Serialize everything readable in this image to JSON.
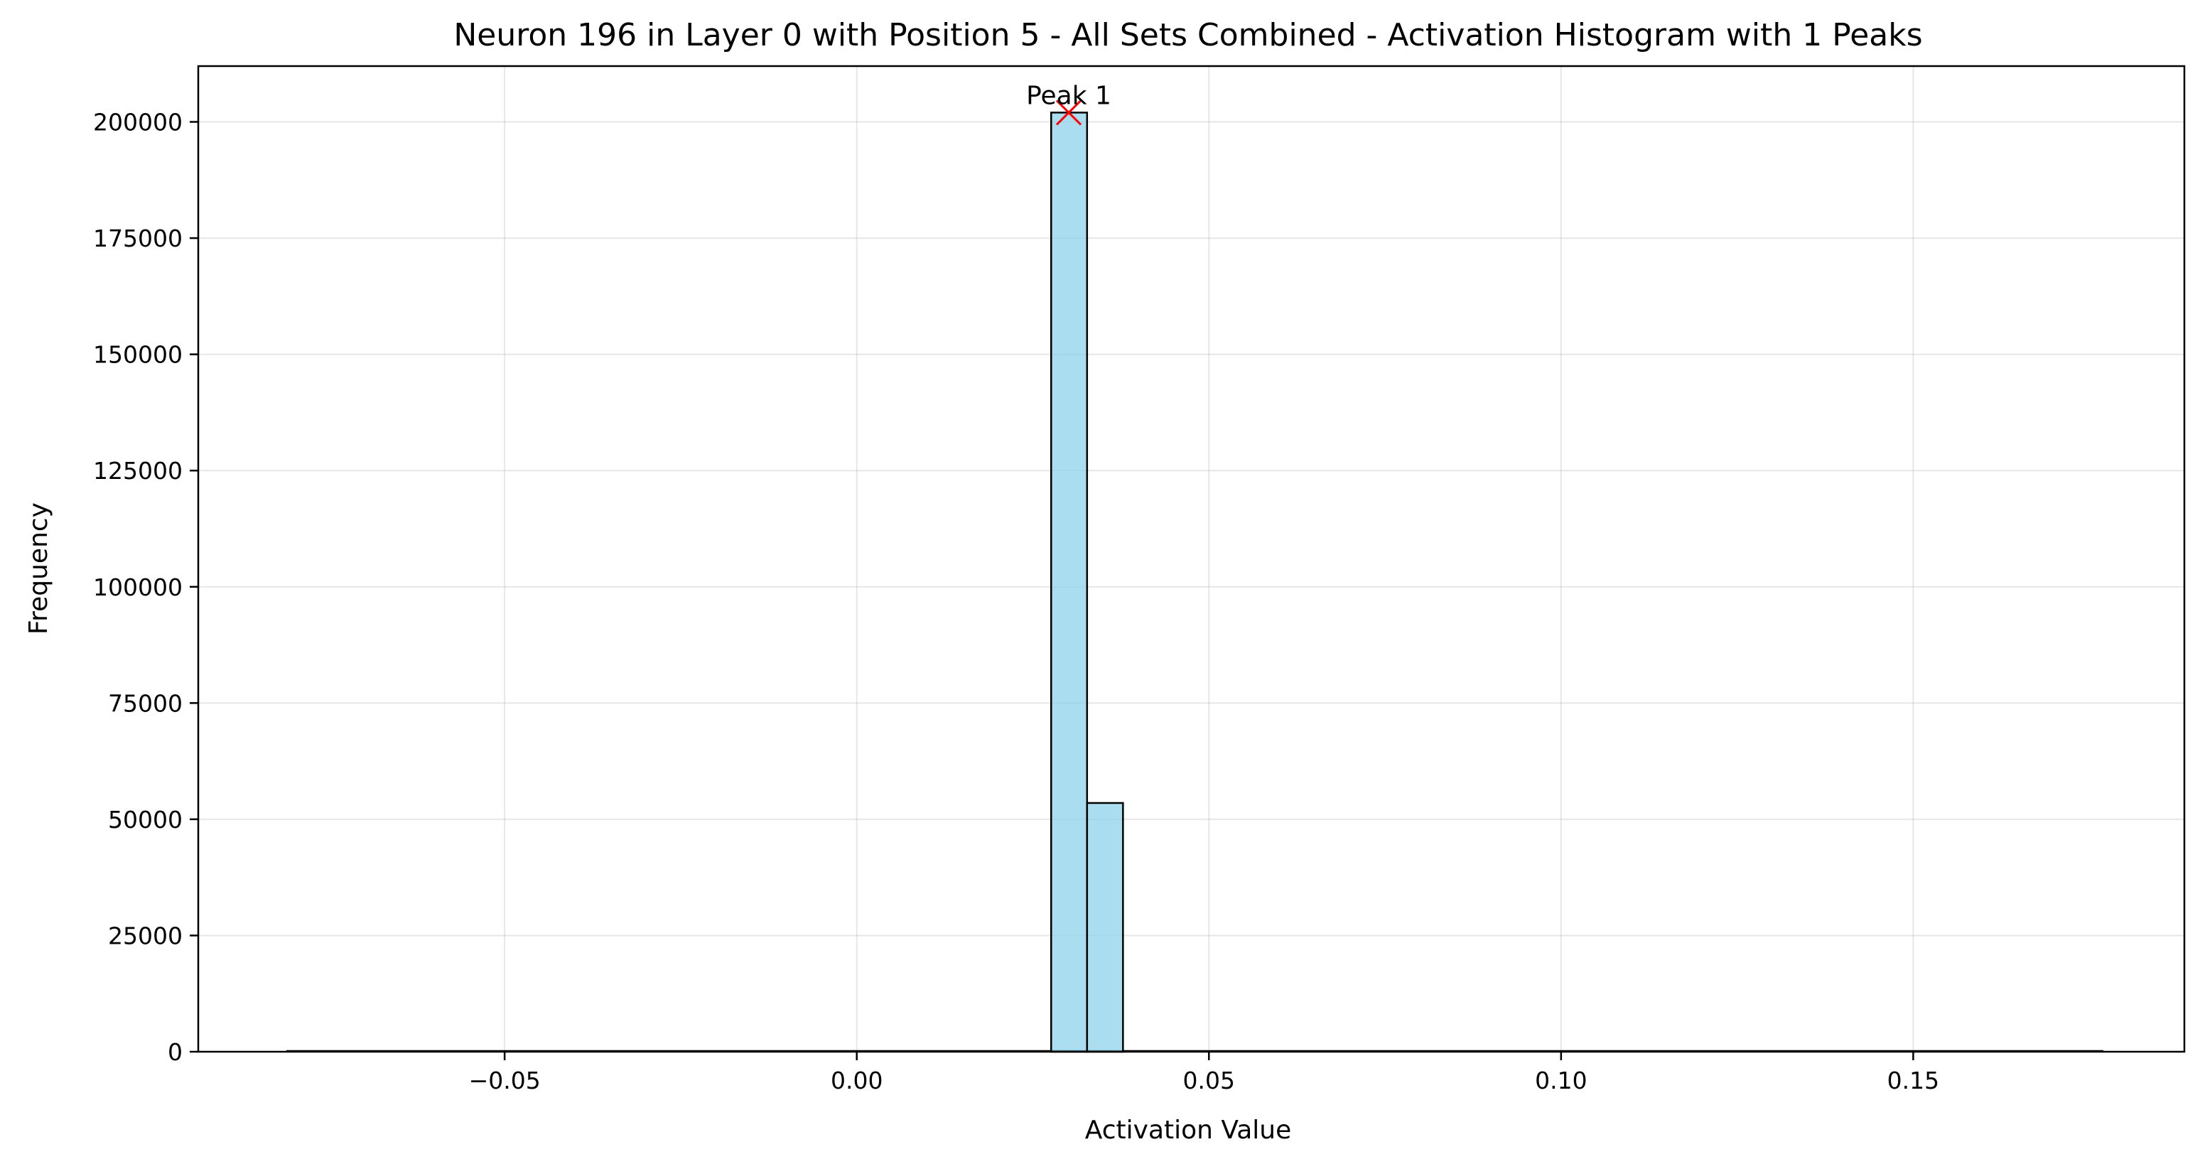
{
  "chart_data": {
    "type": "bar",
    "title": "Neuron 196 in Layer 0 with Position 5 - All Sets Combined - Activation Histogram with 1 Peaks",
    "xlabel": "Activation Value",
    "ylabel": "Frequency",
    "xlim": [
      -0.0935,
      0.1885
    ],
    "ylim": [
      0,
      212000
    ],
    "xticks": [
      -0.05,
      0.0,
      0.05,
      0.1,
      0.15
    ],
    "xtick_labels": [
      "−0.05",
      "0.00",
      "0.05",
      "0.10",
      "0.15"
    ],
    "yticks": [
      0,
      25000,
      50000,
      75000,
      100000,
      125000,
      150000,
      175000,
      200000
    ],
    "ytick_labels": [
      "0",
      "25000",
      "50000",
      "75000",
      "100000",
      "125000",
      "150000",
      "175000",
      "200000"
    ],
    "grid": true,
    "histogram_range": [
      -0.081,
      0.177
    ],
    "bins": [
      {
        "x0": 0.0276,
        "x1": 0.0327,
        "value": 202000
      },
      {
        "x0": 0.0327,
        "x1": 0.0378,
        "value": 53500
      }
    ],
    "bar_color": "#87CEEB",
    "edge_color": "#000000",
    "peaks": [
      {
        "label": "Peak 1",
        "x": 0.0301,
        "y": 202000,
        "marker_color": "#ff0000"
      }
    ]
  }
}
